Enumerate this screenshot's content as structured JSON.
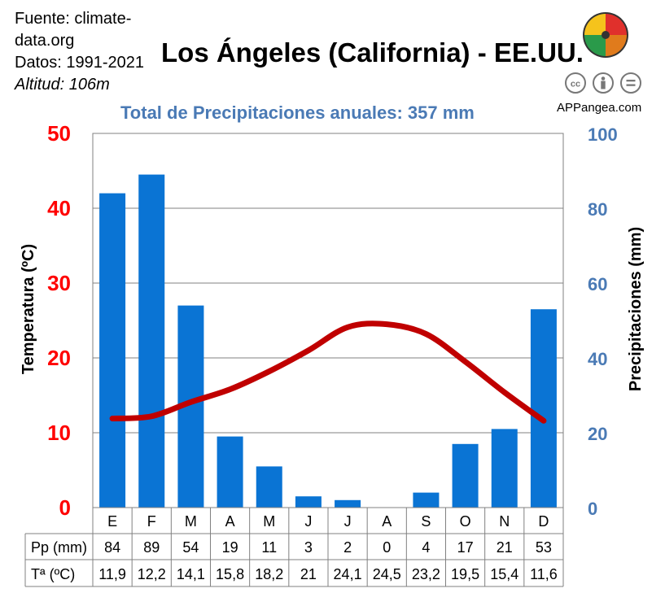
{
  "source": {
    "line1": "Fuente: climate-",
    "line2": "data.org",
    "period": "Datos: 1991-2021",
    "altitude": "Altitud: 106m"
  },
  "title": "Los Ángeles (California) - EE.UU.",
  "subtitle": "Total de Precipitaciones anuales: 357 mm",
  "brand": "APPangea.com",
  "license_icons": [
    "cc-icon",
    "by-icon",
    "nd-icon"
  ],
  "colors": {
    "bars": "#0a74d4",
    "line": "#c00000",
    "left_axis": "#ff0000",
    "right_axis": "#4a7ab5",
    "subtitle": "#4a7ab5"
  },
  "chart_data": {
    "type": "bar",
    "categories": [
      "E",
      "F",
      "M",
      "A",
      "M",
      "J",
      "J",
      "A",
      "S",
      "O",
      "N",
      "D"
    ],
    "series": [
      {
        "name": "Pp (mm)",
        "type": "bar",
        "axis": "right",
        "values": [
          84,
          89,
          54,
          19,
          11,
          3,
          2,
          0,
          4,
          17,
          21,
          53
        ]
      },
      {
        "name": "Tª (ºC)",
        "type": "line",
        "axis": "left",
        "values": [
          11.9,
          12.2,
          14.1,
          15.8,
          18.2,
          21,
          24.1,
          24.5,
          23.2,
          19.5,
          15.4,
          11.6
        ]
      }
    ],
    "ylabel": "Temperatura (ºC)",
    "y2label": "Precipitaciones (mm)",
    "ylim": [
      0,
      50
    ],
    "y2lim": [
      0,
      100
    ],
    "yticks": [
      "0",
      "10",
      "20",
      "30",
      "40",
      "50"
    ],
    "y2ticks": [
      "0",
      "20",
      "40",
      "60",
      "80",
      "100"
    ],
    "grid": true,
    "table": {
      "row_labels": [
        "Pp (mm)",
        "Tª (ºC)"
      ],
      "pp": [
        "84",
        "89",
        "54",
        "19",
        "11",
        "3",
        "2",
        "0",
        "4",
        "17",
        "21",
        "53"
      ],
      "temp": [
        "11,9",
        "12,2",
        "14,1",
        "15,8",
        "18,2",
        "21",
        "24,1",
        "24,5",
        "23,2",
        "19,5",
        "15,4",
        "11,6"
      ]
    }
  }
}
